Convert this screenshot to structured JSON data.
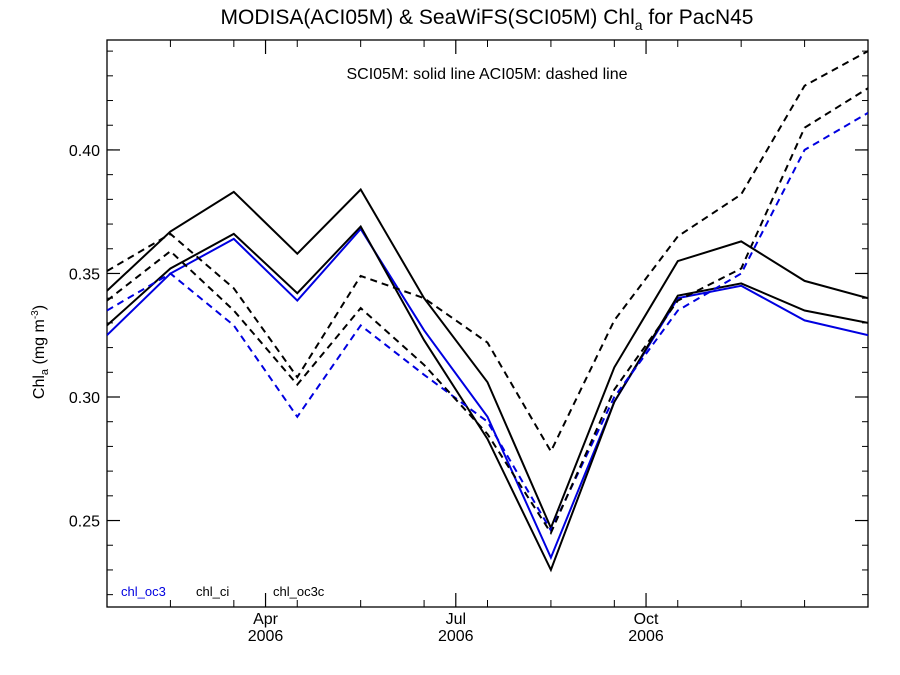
{
  "chart_data": {
    "type": "line",
    "title_main": "MODISA(ACI05M) & SeaWiFS(SCI05M)  Chl",
    "title_sub": "a",
    "title_tail": " for PacN45",
    "annotation": "SCI05M: solid line   ACI05M: dashed line",
    "ylabel_main": "Chl",
    "ylabel_sub": "a",
    "ylabel_unit": " (mg m",
    "ylabel_exp": "-3",
    "ylabel_close": ")",
    "ylim": [
      0.215,
      0.4445
    ],
    "yticks": [
      0.25,
      0.3,
      0.35,
      0.4
    ],
    "ytick_labels": [
      "0.25",
      "0.30",
      "0.35",
      "0.40"
    ],
    "xlim": [
      0,
      12
    ],
    "x": [
      0,
      1,
      2,
      3,
      4,
      5,
      6,
      7,
      8,
      9,
      10,
      11,
      12
    ],
    "xticks_major": [
      {
        "pos": 2.5,
        "month": "Apr",
        "year": "2006"
      },
      {
        "pos": 5.5,
        "month": "Jul",
        "year": "2006"
      },
      {
        "pos": 8.5,
        "month": "Oct",
        "year": "2006"
      }
    ],
    "grid": false,
    "colors": {
      "blue": "#0000e0",
      "black": "#000000"
    },
    "series": [
      {
        "name": "chl_oc3",
        "color": "#0000e0",
        "style": "solid",
        "values": [
          0.325,
          0.35,
          0.364,
          0.339,
          0.368,
          0.327,
          0.292,
          0.235,
          0.298,
          0.34,
          0.345,
          0.331,
          0.325
        ]
      },
      {
        "name": "chl_ci",
        "color": "#000000",
        "style": "solid",
        "values": [
          0.343,
          0.367,
          0.383,
          0.358,
          0.384,
          0.34,
          0.306,
          0.247,
          0.312,
          0.355,
          0.363,
          0.347,
          0.34
        ]
      },
      {
        "name": "chl_oc3c",
        "color": "#000000",
        "style": "solid",
        "values": [
          0.329,
          0.352,
          0.366,
          0.342,
          0.369,
          0.323,
          0.283,
          0.23,
          0.298,
          0.341,
          0.346,
          0.335,
          0.33
        ]
      },
      {
        "name": "chl_oc3",
        "color": "#0000e0",
        "style": "dashed",
        "values": [
          0.335,
          0.35,
          0.329,
          0.292,
          0.329,
          0.309,
          0.29,
          0.246,
          0.3,
          0.335,
          0.35,
          0.4,
          0.415
        ]
      },
      {
        "name": "chl_ci",
        "color": "#000000",
        "style": "dashed",
        "values": [
          0.351,
          0.366,
          0.344,
          0.308,
          0.349,
          0.34,
          0.322,
          0.278,
          0.331,
          0.365,
          0.382,
          0.426,
          0.44
        ]
      },
      {
        "name": "chl_oc3c",
        "color": "#000000",
        "style": "dashed",
        "values": [
          0.339,
          0.359,
          0.335,
          0.305,
          0.336,
          0.313,
          0.285,
          0.245,
          0.303,
          0.339,
          0.352,
          0.409,
          0.425
        ]
      }
    ],
    "legend": [
      {
        "label": "chl_oc3",
        "color": "#0000e0"
      },
      {
        "label": "chl_ci",
        "color": "#000000"
      },
      {
        "label": "chl_oc3c",
        "color": "#000000"
      }
    ],
    "legend_position": "bottom-left"
  }
}
